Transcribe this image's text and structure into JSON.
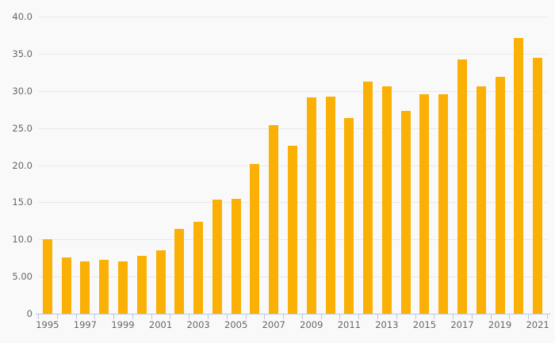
{
  "chart_data": {
    "type": "bar",
    "title": "",
    "xlabel": "",
    "ylabel": "",
    "categories": [
      "1995",
      "1996",
      "1997",
      "1998",
      "1999",
      "2000",
      "2001",
      "2002",
      "2003",
      "2004",
      "2005",
      "2006",
      "2007",
      "2008",
      "2009",
      "2010",
      "2011",
      "2012",
      "2013",
      "2014",
      "2015",
      "2016",
      "2017",
      "2018",
      "2019",
      "2020",
      "2021"
    ],
    "values": [
      10.0,
      7.6,
      7.0,
      7.3,
      7.0,
      7.8,
      8.5,
      11.4,
      12.4,
      15.4,
      15.5,
      20.2,
      25.4,
      22.6,
      29.1,
      29.2,
      26.4,
      31.3,
      30.6,
      27.3,
      29.6,
      29.5,
      34.2,
      30.6,
      31.9,
      37.1,
      34.5
    ],
    "ylim": [
      0,
      40
    ],
    "ytick_interval": 5,
    "ytick_labels": [
      "0",
      "5.00",
      "10.0",
      "15.0",
      "20.0",
      "25.0",
      "30.0",
      "35.0",
      "40.0"
    ],
    "xtick_labels": [
      "1995",
      "1997",
      "1999",
      "2001",
      "2003",
      "2005",
      "2007",
      "2009",
      "2011",
      "2013",
      "2015",
      "2017",
      "2019",
      "2021"
    ],
    "grid": true,
    "legend": false
  },
  "colors": {
    "background": "#f9f9f9",
    "bar": "#FAB005",
    "gridline": "#e9e9e9",
    "axis": "#bcc6de",
    "tick_label": "#666666"
  }
}
